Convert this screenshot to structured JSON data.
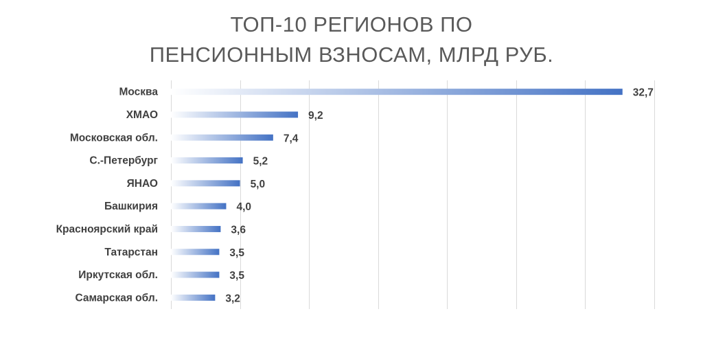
{
  "chart_data": {
    "type": "bar",
    "orientation": "horizontal",
    "title_lines": [
      "ТОП-10 РЕГИОНОВ ПО",
      "ПЕНСИОННЫМ ВЗНОСАМ, МЛРД РУБ."
    ],
    "categories": [
      "Москва",
      "ХМАО",
      "Московская обл.",
      "С.-Петербург",
      "ЯНАО",
      "Башкирия",
      "Красноярский край",
      "Татарстан",
      "Иркутская обл.",
      "Самарская обл."
    ],
    "values": [
      32.7,
      9.2,
      7.4,
      5.2,
      5.0,
      4.0,
      3.6,
      3.5,
      3.5,
      3.2
    ],
    "value_labels": [
      "32,7",
      "9,2",
      "7,4",
      "5,2",
      "5,0",
      "4,0",
      "3,6",
      "3,5",
      "3,5",
      "3,2"
    ],
    "xlim": [
      0,
      35
    ],
    "x_gridline_step": 5,
    "grid": true,
    "axis_tick_labels_shown": false,
    "legend": "none",
    "bar_color": "#4472C4",
    "bar_fill": "gradient-white-to-blue"
  }
}
